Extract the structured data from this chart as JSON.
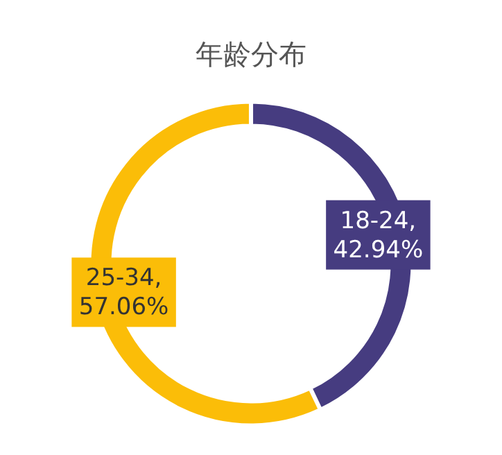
{
  "chart_data": {
    "type": "donut",
    "title": "年龄分布",
    "categories": [
      "18-24",
      "25-34"
    ],
    "values": [
      42.94,
      57.06
    ],
    "colors": [
      "#463c80",
      "#fbbd08"
    ],
    "value_labels": [
      ", 42.94%",
      ", 57.06%"
    ]
  }
}
